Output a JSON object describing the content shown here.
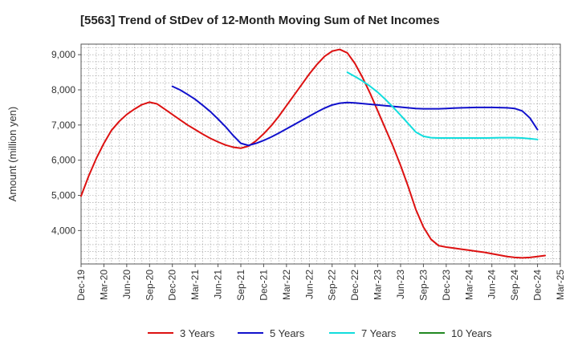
{
  "chart_data": {
    "type": "line",
    "title": "[5563]  Trend of StDev of 12-Month Moving Sum of Net Incomes",
    "xlabel": "",
    "ylabel": "Amount (million yen)",
    "grid": true,
    "legend_position": "bottom",
    "x_ticks": [
      "Dec-19",
      "Mar-20",
      "Jun-20",
      "Sep-20",
      "Dec-20",
      "Mar-21",
      "Jun-21",
      "Sep-21",
      "Dec-21",
      "Mar-22",
      "Jun-22",
      "Sep-22",
      "Dec-22",
      "Mar-23",
      "Jun-23",
      "Sep-23",
      "Dec-23",
      "Mar-24",
      "Jun-24",
      "Sep-24",
      "Dec-24",
      "Mar-25"
    ],
    "y_ticks": [
      4000,
      5000,
      6000,
      7000,
      8000,
      9000
    ],
    "y_tick_labels": [
      "4,000",
      "5,000",
      "6,000",
      "7,000",
      "8,000",
      "9,000"
    ],
    "ylim": [
      3050,
      9300
    ],
    "series": [
      {
        "name": "3 Years",
        "color": "#dd1111",
        "points": [
          [
            "Dec-19",
            4980
          ],
          [
            "Jan-20",
            5550
          ],
          [
            "Feb-20",
            6050
          ],
          [
            "Mar-20",
            6480
          ],
          [
            "Apr-20",
            6850
          ],
          [
            "May-20",
            7100
          ],
          [
            "Jun-20",
            7300
          ],
          [
            "Jul-20",
            7450
          ],
          [
            "Aug-20",
            7580
          ],
          [
            "Sep-20",
            7650
          ],
          [
            "Oct-20",
            7600
          ],
          [
            "Nov-20",
            7450
          ],
          [
            "Dec-20",
            7300
          ],
          [
            "Jan-21",
            7150
          ],
          [
            "Feb-21",
            7000
          ],
          [
            "Mar-21",
            6870
          ],
          [
            "Apr-21",
            6740
          ],
          [
            "May-21",
            6620
          ],
          [
            "Jun-21",
            6520
          ],
          [
            "Jul-21",
            6430
          ],
          [
            "Aug-21",
            6370
          ],
          [
            "Sep-21",
            6340
          ],
          [
            "Oct-21",
            6400
          ],
          [
            "Nov-21",
            6550
          ],
          [
            "Dec-21",
            6750
          ],
          [
            "Jan-22",
            6980
          ],
          [
            "Feb-22",
            7250
          ],
          [
            "Mar-22",
            7550
          ],
          [
            "Apr-22",
            7850
          ],
          [
            "May-22",
            8150
          ],
          [
            "Jun-22",
            8450
          ],
          [
            "Jul-22",
            8720
          ],
          [
            "Aug-22",
            8950
          ],
          [
            "Sep-22",
            9100
          ],
          [
            "Oct-22",
            9150
          ],
          [
            "Nov-22",
            9050
          ],
          [
            "Dec-22",
            8750
          ],
          [
            "Jan-23",
            8350
          ],
          [
            "Feb-23",
            7900
          ],
          [
            "Mar-23",
            7400
          ],
          [
            "Apr-23",
            6900
          ],
          [
            "May-23",
            6400
          ],
          [
            "Jun-23",
            5850
          ],
          [
            "Jul-23",
            5250
          ],
          [
            "Aug-23",
            4600
          ],
          [
            "Sep-23",
            4100
          ],
          [
            "Oct-23",
            3750
          ],
          [
            "Nov-23",
            3570
          ],
          [
            "Dec-23",
            3530
          ],
          [
            "Jan-24",
            3500
          ],
          [
            "Feb-24",
            3470
          ],
          [
            "Mar-24",
            3440
          ],
          [
            "Apr-24",
            3410
          ],
          [
            "May-24",
            3380
          ],
          [
            "Jun-24",
            3340
          ],
          [
            "Jul-24",
            3300
          ],
          [
            "Aug-24",
            3260
          ],
          [
            "Sep-24",
            3235
          ],
          [
            "Oct-24",
            3225
          ],
          [
            "Nov-24",
            3235
          ],
          [
            "Dec-24",
            3260
          ],
          [
            "Jan-25",
            3290
          ]
        ]
      },
      {
        "name": "5 Years",
        "color": "#1111cc",
        "points": [
          [
            "Dec-20",
            8100
          ],
          [
            "Jan-21",
            8000
          ],
          [
            "Feb-21",
            7870
          ],
          [
            "Mar-21",
            7730
          ],
          [
            "Apr-21",
            7560
          ],
          [
            "May-21",
            7380
          ],
          [
            "Jun-21",
            7170
          ],
          [
            "Jul-21",
            6950
          ],
          [
            "Aug-21",
            6700
          ],
          [
            "Sep-21",
            6480
          ],
          [
            "Oct-21",
            6420
          ],
          [
            "Nov-21",
            6480
          ],
          [
            "Dec-21",
            6560
          ],
          [
            "Jan-22",
            6660
          ],
          [
            "Feb-22",
            6770
          ],
          [
            "Mar-22",
            6890
          ],
          [
            "Apr-22",
            7010
          ],
          [
            "May-22",
            7130
          ],
          [
            "Jun-22",
            7250
          ],
          [
            "Jul-22",
            7370
          ],
          [
            "Aug-22",
            7480
          ],
          [
            "Sep-22",
            7570
          ],
          [
            "Oct-22",
            7620
          ],
          [
            "Nov-22",
            7640
          ],
          [
            "Dec-22",
            7630
          ],
          [
            "Jan-23",
            7610
          ],
          [
            "Feb-23",
            7590
          ],
          [
            "Mar-23",
            7570
          ],
          [
            "Apr-23",
            7550
          ],
          [
            "May-23",
            7530
          ],
          [
            "Jun-23",
            7510
          ],
          [
            "Jul-23",
            7490
          ],
          [
            "Aug-23",
            7470
          ],
          [
            "Sep-23",
            7460
          ],
          [
            "Oct-23",
            7460
          ],
          [
            "Nov-23",
            7460
          ],
          [
            "Dec-23",
            7470
          ],
          [
            "Jan-24",
            7480
          ],
          [
            "Feb-24",
            7490
          ],
          [
            "Mar-24",
            7495
          ],
          [
            "Apr-24",
            7500
          ],
          [
            "May-24",
            7500
          ],
          [
            "Jun-24",
            7500
          ],
          [
            "Jul-24",
            7495
          ],
          [
            "Aug-24",
            7490
          ],
          [
            "Sep-24",
            7470
          ],
          [
            "Oct-24",
            7400
          ],
          [
            "Nov-24",
            7200
          ],
          [
            "Dec-24",
            6870
          ]
        ]
      },
      {
        "name": "7 Years",
        "color": "#11dddd",
        "points": [
          [
            "Nov-22",
            8500
          ],
          [
            "Dec-22",
            8380
          ],
          [
            "Jan-23",
            8250
          ],
          [
            "Feb-23",
            8100
          ],
          [
            "Mar-23",
            7930
          ],
          [
            "Apr-23",
            7730
          ],
          [
            "May-23",
            7510
          ],
          [
            "Jun-23",
            7280
          ],
          [
            "Jul-23",
            7040
          ],
          [
            "Aug-23",
            6800
          ],
          [
            "Sep-23",
            6680
          ],
          [
            "Oct-23",
            6640
          ],
          [
            "Nov-23",
            6630
          ],
          [
            "Dec-23",
            6630
          ],
          [
            "Jan-24",
            6630
          ],
          [
            "Feb-24",
            6630
          ],
          [
            "Mar-24",
            6630
          ],
          [
            "Apr-24",
            6630
          ],
          [
            "May-24",
            6630
          ],
          [
            "Jun-24",
            6635
          ],
          [
            "Jul-24",
            6640
          ],
          [
            "Aug-24",
            6640
          ],
          [
            "Sep-24",
            6640
          ],
          [
            "Oct-24",
            6630
          ],
          [
            "Nov-24",
            6610
          ],
          [
            "Dec-24",
            6590
          ]
        ]
      },
      {
        "name": "10 Years",
        "color": "#228822",
        "points": []
      }
    ]
  }
}
